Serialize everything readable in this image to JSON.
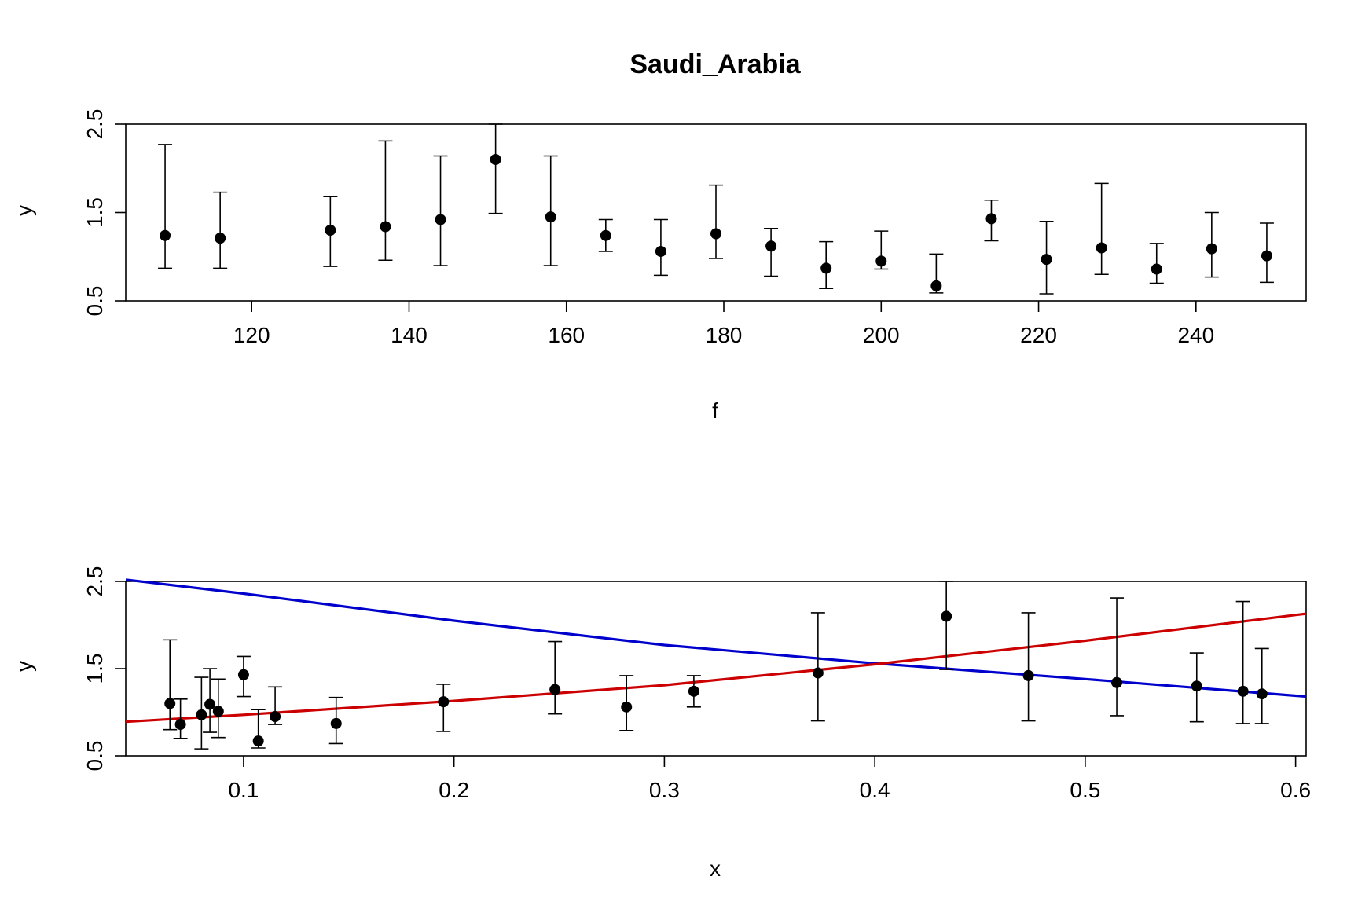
{
  "title": "Saudi_Arabia",
  "chart_data": [
    {
      "type": "scatter",
      "xlabel": "f",
      "ylabel": "y",
      "xlim": [
        104,
        254
      ],
      "ylim": [
        0.5,
        2.5
      ],
      "xticks": [
        120,
        140,
        160,
        180,
        200,
        220,
        240
      ],
      "yticks": [
        0.5,
        1.5,
        2.5
      ],
      "points": [
        {
          "x": 109,
          "y": 1.24,
          "lo": 0.87,
          "hi": 2.27
        },
        {
          "x": 116,
          "y": 1.21,
          "lo": 0.87,
          "hi": 1.73
        },
        {
          "x": 130,
          "y": 1.3,
          "lo": 0.89,
          "hi": 1.68
        },
        {
          "x": 137,
          "y": 1.34,
          "lo": 0.96,
          "hi": 2.31
        },
        {
          "x": 144,
          "y": 1.42,
          "lo": 0.9,
          "hi": 2.14
        },
        {
          "x": 151,
          "y": 2.1,
          "lo": 1.49,
          "hi": 2.5
        },
        {
          "x": 158,
          "y": 1.45,
          "lo": 0.9,
          "hi": 2.14
        },
        {
          "x": 165,
          "y": 1.24,
          "lo": 1.06,
          "hi": 1.42
        },
        {
          "x": 172,
          "y": 1.06,
          "lo": 0.79,
          "hi": 1.42
        },
        {
          "x": 179,
          "y": 1.26,
          "lo": 0.98,
          "hi": 1.81
        },
        {
          "x": 186,
          "y": 1.12,
          "lo": 0.78,
          "hi": 1.32
        },
        {
          "x": 193,
          "y": 0.87,
          "lo": 0.64,
          "hi": 1.17
        },
        {
          "x": 200,
          "y": 0.95,
          "lo": 0.86,
          "hi": 1.29
        },
        {
          "x": 207,
          "y": 0.67,
          "lo": 0.59,
          "hi": 1.03
        },
        {
          "x": 214,
          "y": 1.43,
          "lo": 1.18,
          "hi": 1.64
        },
        {
          "x": 221,
          "y": 0.97,
          "lo": 0.58,
          "hi": 1.4
        },
        {
          "x": 228,
          "y": 1.1,
          "lo": 0.8,
          "hi": 1.83
        },
        {
          "x": 235,
          "y": 0.86,
          "lo": 0.7,
          "hi": 1.15
        },
        {
          "x": 242,
          "y": 1.09,
          "lo": 0.77,
          "hi": 1.5
        },
        {
          "x": 249,
          "y": 1.01,
          "lo": 0.71,
          "hi": 1.38
        }
      ]
    },
    {
      "type": "scatter",
      "xlabel": "x",
      "ylabel": "y",
      "xlim": [
        0.044,
        0.605
      ],
      "ylim": [
        0.5,
        2.5
      ],
      "xticks": [
        0.1,
        0.2,
        0.3,
        0.4,
        0.5,
        0.6
      ],
      "xtick_labels": [
        "0.1",
        "0.2",
        "0.3",
        "0.4",
        "0.5",
        "0.6"
      ],
      "yticks": [
        0.5,
        1.5,
        2.5
      ],
      "points": [
        {
          "x": 0.065,
          "y": 1.1,
          "lo": 0.8,
          "hi": 1.83
        },
        {
          "x": 0.07,
          "y": 0.86,
          "lo": 0.7,
          "hi": 1.15
        },
        {
          "x": 0.08,
          "y": 0.97,
          "lo": 0.58,
          "hi": 1.4
        },
        {
          "x": 0.084,
          "y": 1.09,
          "lo": 0.77,
          "hi": 1.5
        },
        {
          "x": 0.088,
          "y": 1.01,
          "lo": 0.71,
          "hi": 1.38
        },
        {
          "x": 0.1,
          "y": 1.43,
          "lo": 1.18,
          "hi": 1.64
        },
        {
          "x": 0.107,
          "y": 0.67,
          "lo": 0.59,
          "hi": 1.03
        },
        {
          "x": 0.115,
          "y": 0.95,
          "lo": 0.86,
          "hi": 1.29
        },
        {
          "x": 0.144,
          "y": 0.87,
          "lo": 0.64,
          "hi": 1.17
        },
        {
          "x": 0.195,
          "y": 1.12,
          "lo": 0.78,
          "hi": 1.32
        },
        {
          "x": 0.248,
          "y": 1.26,
          "lo": 0.98,
          "hi": 1.81
        },
        {
          "x": 0.282,
          "y": 1.06,
          "lo": 0.79,
          "hi": 1.42
        },
        {
          "x": 0.314,
          "y": 1.24,
          "lo": 1.06,
          "hi": 1.42
        },
        {
          "x": 0.373,
          "y": 1.45,
          "lo": 0.9,
          "hi": 2.14
        },
        {
          "x": 0.434,
          "y": 2.1,
          "lo": 1.49,
          "hi": 2.5
        },
        {
          "x": 0.473,
          "y": 1.42,
          "lo": 0.9,
          "hi": 2.14
        },
        {
          "x": 0.515,
          "y": 1.34,
          "lo": 0.96,
          "hi": 2.31
        },
        {
          "x": 0.553,
          "y": 1.3,
          "lo": 0.89,
          "hi": 1.68
        },
        {
          "x": 0.575,
          "y": 1.24,
          "lo": 0.87,
          "hi": 2.27
        },
        {
          "x": 0.584,
          "y": 1.21,
          "lo": 0.87,
          "hi": 1.73
        }
      ],
      "lines": [
        {
          "color": "#0000cc",
          "x": [
            0.044,
            0.1,
            0.2,
            0.3,
            0.4,
            0.5,
            0.605
          ],
          "y": [
            2.52,
            2.36,
            2.05,
            1.77,
            1.56,
            1.38,
            1.18
          ]
        },
        {
          "color": "#cc0000",
          "x": [
            0.044,
            0.1,
            0.2,
            0.3,
            0.4,
            0.5,
            0.605
          ],
          "y": [
            0.89,
            0.97,
            1.13,
            1.31,
            1.55,
            1.82,
            2.13
          ]
        }
      ]
    }
  ]
}
